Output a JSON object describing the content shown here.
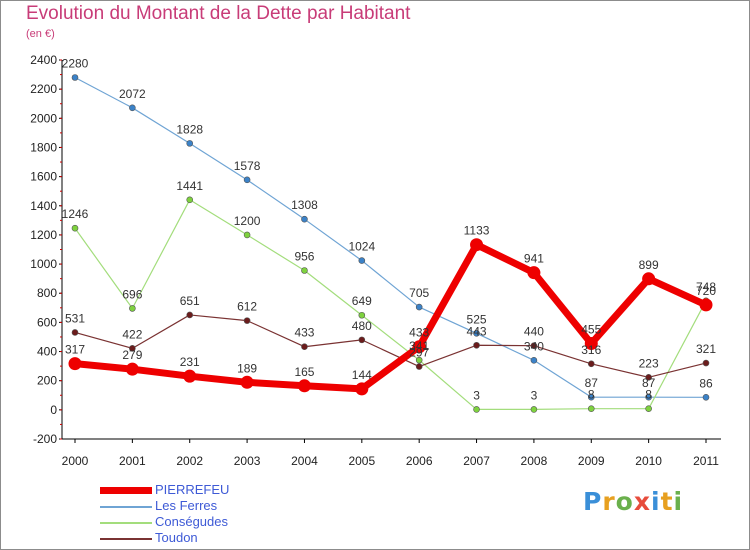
{
  "title": "Evolution du Montant de la Dette par Habitant",
  "subtitle": "(en €)",
  "logo": {
    "letters": [
      "P",
      "r",
      "o",
      "x",
      "i",
      "t",
      "i"
    ],
    "colors": [
      "#3a8fd8",
      "#e7a020",
      "#6ab04c",
      "#e74c3c",
      "#3a8fd8",
      "#e7a020",
      "#6ab04c"
    ]
  },
  "chart_data": {
    "type": "line",
    "title": "Evolution du Montant de la Dette par Habitant",
    "subtitle": "(en €)",
    "x": [
      "2000",
      "2001",
      "2002",
      "2003",
      "2004",
      "2005",
      "2006",
      "2007",
      "2008",
      "2009",
      "2010",
      "2011"
    ],
    "y_ticks": [
      -200,
      0,
      200,
      400,
      600,
      800,
      1000,
      1200,
      1400,
      1600,
      1800,
      2000,
      2200,
      2400
    ],
    "ylim": [
      -200,
      2400
    ],
    "grid": false,
    "legend_position": "bottom-left",
    "series": [
      {
        "name": "PIERREFEU",
        "color": "#ee0000",
        "marker": "#ee0000",
        "width": 7,
        "values": [
          317,
          279,
          231,
          189,
          165,
          144,
          433,
          1133,
          941,
          455,
          899,
          720
        ],
        "labels": [
          "317",
          "279",
          "231",
          "189",
          "165",
          "144",
          "433",
          "1133",
          "941",
          "455",
          "899",
          "720"
        ]
      },
      {
        "name": "Les Ferres",
        "color": "#6fa4d4",
        "marker": "#3b82c8",
        "width": 1.2,
        "values": [
          2280,
          2072,
          1828,
          1578,
          1308,
          1024,
          705,
          525,
          340,
          87,
          87,
          86
        ],
        "labels": [
          "2280",
          "2072",
          "1828",
          "1578",
          "1308",
          "1024",
          "705",
          "525",
          "340",
          "87",
          "87",
          "86"
        ]
      },
      {
        "name": "Conségudes",
        "color": "#a3dd7c",
        "marker": "#7ed23e",
        "width": 1.2,
        "values": [
          1246,
          696,
          1441,
          1200,
          956,
          649,
          341,
          3,
          3,
          8,
          8,
          748
        ],
        "labels": [
          "1246",
          "696",
          "1441",
          "1200",
          "956",
          "649",
          "341",
          "3",
          "3",
          "8",
          "8",
          "748"
        ]
      },
      {
        "name": "Toudon",
        "color": "#7a3232",
        "marker": "#6b1c1c",
        "width": 1.2,
        "values": [
          531,
          422,
          651,
          612,
          433,
          480,
          297,
          443,
          440,
          316,
          223,
          321
        ],
        "labels": [
          "531",
          "422",
          "651",
          "612",
          "433",
          "480",
          "297",
          "443",
          "440",
          "316",
          "223",
          "321"
        ]
      }
    ]
  }
}
